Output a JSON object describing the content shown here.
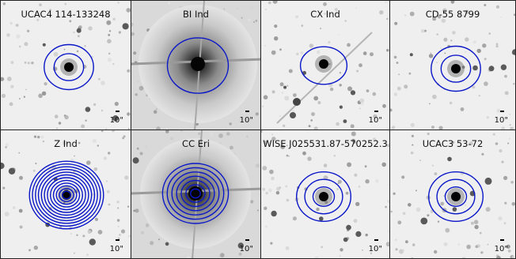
{
  "figure": {
    "contour_color": "#0a17c8",
    "panels": [
      {
        "title": "UCAC4 114-133248",
        "scale_label": "10\"",
        "background": "starfield-light",
        "contours": 2,
        "bright_source": false
      },
      {
        "title": "BI Ind",
        "scale_label": "10\"",
        "background": "bright-halo",
        "contours": 1,
        "bright_source": true
      },
      {
        "title": "CX Ind",
        "scale_label": "10\"",
        "background": "starfield-diffraction",
        "contours": 1,
        "bright_source": false
      },
      {
        "title": "CD-55 8799",
        "scale_label": "10\"",
        "background": "starfield-light",
        "contours": 2,
        "bright_source": false
      },
      {
        "title": "Z Ind",
        "scale_label": "10\"",
        "background": "starfield-light",
        "contours": 12,
        "bright_source": false
      },
      {
        "title": "CC Eri",
        "scale_label": "10\"",
        "background": "bright-halo",
        "contours": 7,
        "bright_source": true
      },
      {
        "title": "WISE J025531.87-570252.3",
        "scale_label": "10\"",
        "background": "starfield-light",
        "contours": 3,
        "bright_source": false
      },
      {
        "title": "UCAC3 53-72",
        "scale_label": "10\"",
        "background": "starfield-light",
        "contours": 3,
        "bright_source": false
      }
    ]
  }
}
